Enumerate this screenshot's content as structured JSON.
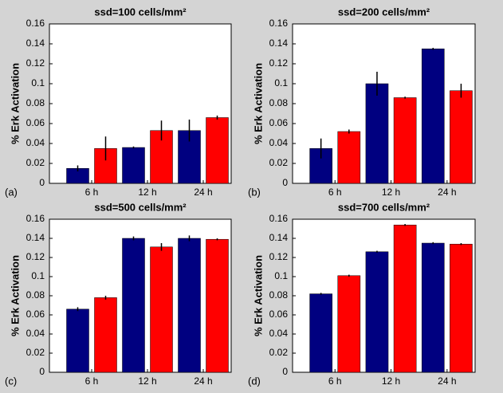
{
  "chart_data": [
    {
      "type": "bar",
      "title": "ssd=100 cells/mm²",
      "panel_label": "(a)",
      "y_label": "% Erk Activation",
      "categories": [
        "6 h",
        "12 h",
        "24 h"
      ],
      "series": [
        {
          "color": "#000080",
          "values": [
            0.015,
            0.036,
            0.053
          ],
          "errors": [
            0.003,
            0.001,
            0.011
          ]
        },
        {
          "color": "#ff0000",
          "values": [
            0.035,
            0.053,
            0.066
          ],
          "errors": [
            0.012,
            0.01,
            0.002
          ]
        }
      ],
      "ylim": [
        0,
        0.16
      ],
      "yticks": [
        0,
        0.02,
        0.04,
        0.06,
        0.08,
        0.1,
        0.12,
        0.14,
        0.16
      ]
    },
    {
      "type": "bar",
      "title": "ssd=200 cells/mm²",
      "panel_label": "(b)",
      "y_label": "% Erk Activation",
      "categories": [
        "6 h",
        "12 h",
        "24 h"
      ],
      "series": [
        {
          "color": "#000080",
          "values": [
            0.035,
            0.1,
            0.135
          ],
          "errors": [
            0.01,
            0.012,
            0.001
          ]
        },
        {
          "color": "#ff0000",
          "values": [
            0.052,
            0.086,
            0.093
          ],
          "errors": [
            0.002,
            0.001,
            0.007
          ]
        }
      ],
      "ylim": [
        0,
        0.16
      ],
      "yticks": [
        0,
        0.02,
        0.04,
        0.06,
        0.08,
        0.1,
        0.12,
        0.14,
        0.16
      ]
    },
    {
      "type": "bar",
      "title": "ssd=500 cells/mm²",
      "panel_label": "(c)",
      "y_label": "% Erk Activation",
      "categories": [
        "6 h",
        "12 h",
        "24 h"
      ],
      "series": [
        {
          "color": "#000080",
          "values": [
            0.066,
            0.14,
            0.14
          ],
          "errors": [
            0.002,
            0.002,
            0.003
          ]
        },
        {
          "color": "#ff0000",
          "values": [
            0.078,
            0.131,
            0.139
          ],
          "errors": [
            0.002,
            0.004,
            0.001
          ]
        }
      ],
      "ylim": [
        0,
        0.16
      ],
      "yticks": [
        0,
        0.02,
        0.04,
        0.06,
        0.08,
        0.1,
        0.12,
        0.14,
        0.16
      ]
    },
    {
      "type": "bar",
      "title": "ssd=700 cells/mm²",
      "panel_label": "(d)",
      "y_label": "% Erk Activation",
      "categories": [
        "6 h",
        "12 h",
        "24 h"
      ],
      "series": [
        {
          "color": "#000080",
          "values": [
            0.082,
            0.126,
            0.135
          ],
          "errors": [
            0.001,
            0.001,
            0.001
          ]
        },
        {
          "color": "#ff0000",
          "values": [
            0.101,
            0.154,
            0.134
          ],
          "errors": [
            0.001,
            0.001,
            0.001
          ]
        }
      ],
      "ylim": [
        0,
        0.16
      ],
      "yticks": [
        0,
        0.02,
        0.04,
        0.06,
        0.08,
        0.1,
        0.12,
        0.14,
        0.16
      ]
    }
  ]
}
